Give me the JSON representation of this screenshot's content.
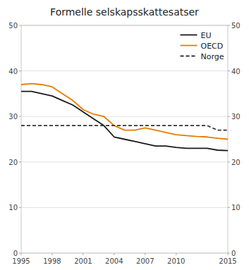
{
  "chart_data": {
    "type": "line",
    "title": "Formelle selskapsskattesatser",
    "x": [
      1995,
      1996,
      1997,
      1998,
      1999,
      2000,
      2001,
      2002,
      2003,
      2004,
      2005,
      2006,
      2007,
      2008,
      2009,
      2010,
      2011,
      2012,
      2013,
      2014,
      2015
    ],
    "series": [
      {
        "name": "EU",
        "color": "#1a1a1a",
        "line_style": "solid",
        "values": [
          35.5,
          35.5,
          35.0,
          34.5,
          33.5,
          32.5,
          31.0,
          29.5,
          28.0,
          25.5,
          25.0,
          24.5,
          24.0,
          23.5,
          23.5,
          23.2,
          23.0,
          23.0,
          23.0,
          22.6,
          22.5
        ]
      },
      {
        "name": "OECD",
        "color": "#e87b00",
        "line_style": "solid",
        "values": [
          37.0,
          37.2,
          37.0,
          36.5,
          35.0,
          33.5,
          31.5,
          30.5,
          30.0,
          28.0,
          27.0,
          27.0,
          27.5,
          27.0,
          26.5,
          26.0,
          25.8,
          25.6,
          25.5,
          25.2,
          25.0
        ]
      },
      {
        "name": "Norge",
        "color": "#333333",
        "line_style": "dashed",
        "values": [
          28.0,
          28.0,
          28.0,
          28.0,
          28.0,
          28.0,
          28.0,
          28.0,
          28.0,
          28.0,
          28.0,
          28.0,
          28.0,
          28.0,
          28.0,
          28.0,
          28.0,
          28.0,
          28.0,
          27.0,
          27.0
        ]
      }
    ],
    "xlim": [
      1995,
      2015
    ],
    "xticks": [
      1995,
      1998,
      2001,
      2004,
      2007,
      2010,
      2015
    ],
    "ylim": [
      0,
      50
    ],
    "yticks": [
      0,
      10,
      20,
      30,
      40,
      50
    ],
    "y2lim": [
      0,
      50
    ],
    "y2ticks": [
      0,
      10,
      20,
      30,
      40,
      50
    ],
    "grid": true,
    "legend": "upper right"
  }
}
